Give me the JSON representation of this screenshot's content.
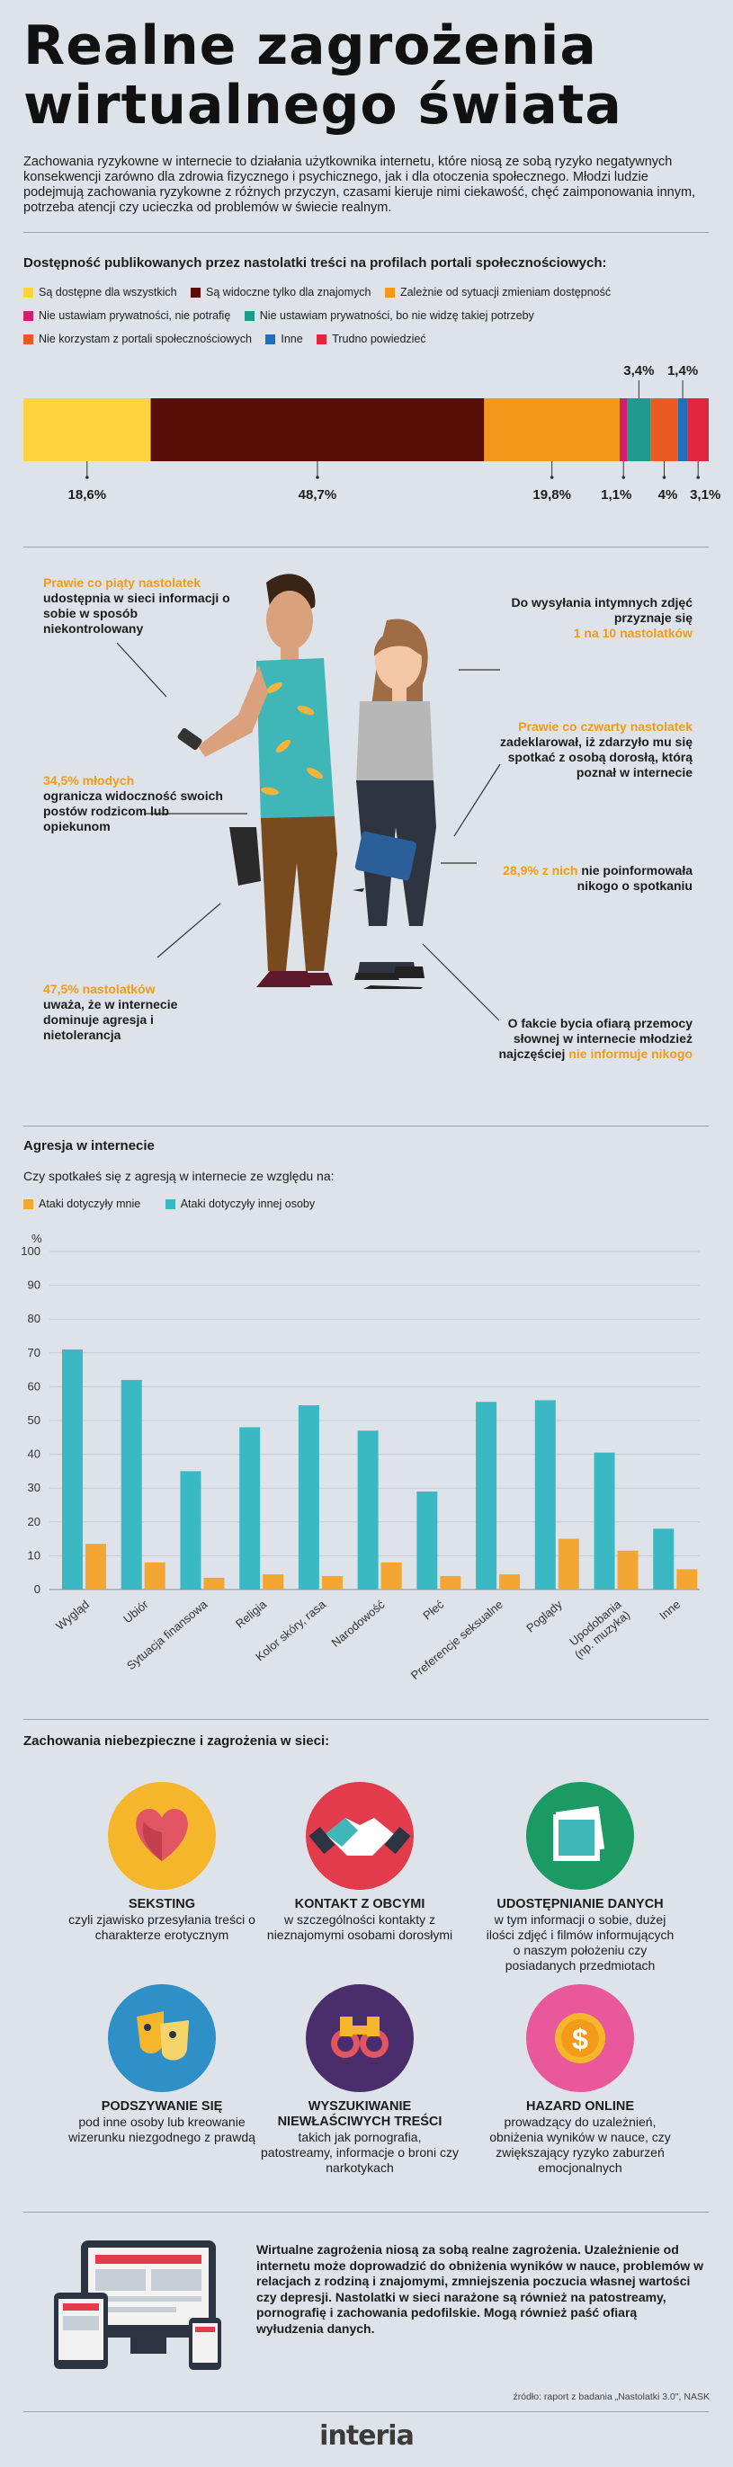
{
  "title_lines": [
    "Realne zagrożenia",
    "wirtualnego świata"
  ],
  "intro": "Zachowania ryzykowne w internecie to działania użytkownika internetu, które niosą ze sobą ryzyko negatywnych konsekwencji zarówno dla zdrowia fizycznego i psychicznego, jak i dla otoczenia społecznego. Młodzi ludzie podejmują zachowania ryzykowne z różnych przyczyn, czasami kieruje nimi ciekawość, chęć zaimponowania innym, potrzeba atencji czy ucieczka od problemów w świecie realnym.",
  "colors": {
    "yellow": "#ffd33d",
    "maroon": "#5a0e08",
    "orange": "#f4971a",
    "magenta": "#d31e6f",
    "teal": "#1f9a8c",
    "red_orange": "#ea5b22",
    "blue": "#1f6fbe",
    "red": "#e0253f",
    "bar_orange": "#f4a633",
    "bar_teal": "#3ab8c4"
  },
  "chart_data": [
    {
      "type": "bar",
      "orientation": "stacked-horizontal",
      "title": "Dostępność publikowanych przez nastolatki treści na profilach portali społecznościowych:",
      "series": [
        {
          "name": "Są dostępne dla wszystkich",
          "value": 18.6,
          "label": "18,6%",
          "color": "#ffd33d"
        },
        {
          "name": "Są widoczne tylko dla znajomych",
          "value": 48.7,
          "label": "48,7%",
          "color": "#5a0e08"
        },
        {
          "name": "Zależnie od sytuacji zmieniam dostępność",
          "value": 19.8,
          "label": "19,8%",
          "color": "#f4971a"
        },
        {
          "name": "Nie ustawiam prywatności, nie potrafię",
          "value": 1.1,
          "label": "1,1%",
          "color": "#d31e6f"
        },
        {
          "name": "Nie ustawiam prywatności, bo nie widzę takiej potrzeby",
          "value": 3.4,
          "label": "3,4%",
          "color": "#1f9a8c"
        },
        {
          "name": "Nie korzystam z portali społecznościowych",
          "value": 4,
          "label": "4%",
          "color": "#ea5b22"
        },
        {
          "name": "Inne",
          "value": 1.4,
          "label": "1,4%",
          "color": "#1f6fbe"
        },
        {
          "name": "Trudno powiedzieć",
          "value": 3.1,
          "label": "3,1%",
          "color": "#e0253f"
        }
      ]
    },
    {
      "type": "bar",
      "title": "Agresja w internecie",
      "subtitle": "Czy spotkałeś się z agresją w internecie ze względu na:",
      "ylabel": "%",
      "ylim": [
        0,
        100
      ],
      "yticks": [
        0,
        10,
        20,
        30,
        40,
        50,
        60,
        70,
        80,
        90,
        100
      ],
      "categories": [
        "Wygląd",
        "Ubiór",
        "Sytuacja finansowa",
        "Religia",
        "Kolor skóry, rasa",
        "Narodowość",
        "Płeć",
        "Preferencje seksualne",
        "Poglądy",
        "Upodobania (np. muzyka)",
        "Inne"
      ],
      "series": [
        {
          "name": "Ataki dotyczyły mnie",
          "color": "#f4a633",
          "values": [
            13.5,
            8,
            3.5,
            4.5,
            4,
            8,
            4,
            4.5,
            15,
            11.5,
            6
          ]
        },
        {
          "name": "Ataki dotyczyły innej osoby",
          "color": "#3ab8c4",
          "values": [
            71,
            62,
            35,
            48,
            54.5,
            47,
            29,
            55.5,
            56,
            40.5,
            18
          ]
        }
      ],
      "grid": true
    }
  ],
  "privacy_section": {
    "value_labels_top": [
      "3,4%",
      "1,4%"
    ],
    "value_labels_bottom": [
      "18,6%",
      "48,7%",
      "19,8%",
      "1,1%",
      "4%",
      "3,1%"
    ]
  },
  "people_section": {
    "callout1_highlight": "Prawie co piąty nastolatek",
    "callout1_text": "udostępnia w sieci informacji o sobie w sposób niekontrolowany",
    "callout2_text": "Do wysyłania intymnych zdjęć przyznaje się",
    "callout2_highlight": "1 na 10 nastolatków",
    "callout3_highlight": "Prawie co czwarty nastolatek",
    "callout3_text": "zadeklarował, iż zdarzyło mu się spotkać z osobą dorosłą, którą poznał w internecie",
    "callout4_highlight": "34,5% młodych",
    "callout4_text": "ogranicza widoczność swoich postów rodzicom lub opiekunom",
    "callout5_highlight": "28,9% z nich",
    "callout5_text": "nie poinformowała nikogo o spotkaniu",
    "callout6_highlight": "47,5% nastolatków",
    "callout6_text": "uważa, że w internecie dominuje agresja i nietolerancja",
    "callout7_text": "O fakcie bycia ofiarą przemocy słownej w internecie młodzież najczęściej",
    "callout7_highlight": "nie informuje nikogo"
  },
  "dangers": {
    "title": "Zachowania niebezpieczne i zagrożenia w sieci:",
    "items": [
      {
        "name": "SEKSTING",
        "desc": "czyli zjawisko przesyłania treści o charakterze erotycznym",
        "icon": "heart-icon",
        "color": "#f5b62c"
      },
      {
        "name": "KONTAKT Z OBCYMI",
        "desc": "w szczególności kontakty z nieznajomymi osobami dorosłymi",
        "icon": "handshake-icon",
        "color": "#e23b4b"
      },
      {
        "name": "UDOSTĘPNIANIE DANYCH",
        "desc": "w tym informacji o sobie, dużej ilości zdjęć i filmów informujących o naszym położeniu czy posiadanych przedmiotach",
        "icon": "photos-icon",
        "color": "#1c9a63"
      },
      {
        "name": "PODSZYWANIE SIĘ",
        "desc": "pod inne osoby lub kreowanie wizerunku niezgodnego z prawdą",
        "icon": "masks-icon",
        "color": "#2f8fc7"
      },
      {
        "name": "WYSZUKIWANIE NIEWŁAŚCIWYCH TREŚCI",
        "desc": "takich jak pornografia, patostreamy, informacje o broni czy narkotykach",
        "icon": "binoculars-icon",
        "color": "#4a2e6b"
      },
      {
        "name": "HAZARD ONLINE",
        "desc": "prowadzący do uzależnień, obniżenia wyników w nauce, czy zwiększający ryzyko zaburzeń emocjonalnych",
        "icon": "coin-icon",
        "color": "#e8589a"
      }
    ]
  },
  "footer": {
    "summary": "Wirtualne zagrożenia niosą za sobą realne zagrożenia. Uzależnienie od internetu może doprowadzić do obniżenia wyników w nauce, problemów w relacjach z rodziną i znajomymi, zmniejszenia poczucia własnej wartości czy depresji. Nastolatki w sieci narażone są również na patostreamy, pornografię i zachowania pedofilskie. Mogą również paść ofiarą wyłudzenia danych.",
    "source": "źródło: raport z badania „Nastolatki 3.0\", NASK",
    "logo": "interia"
  }
}
